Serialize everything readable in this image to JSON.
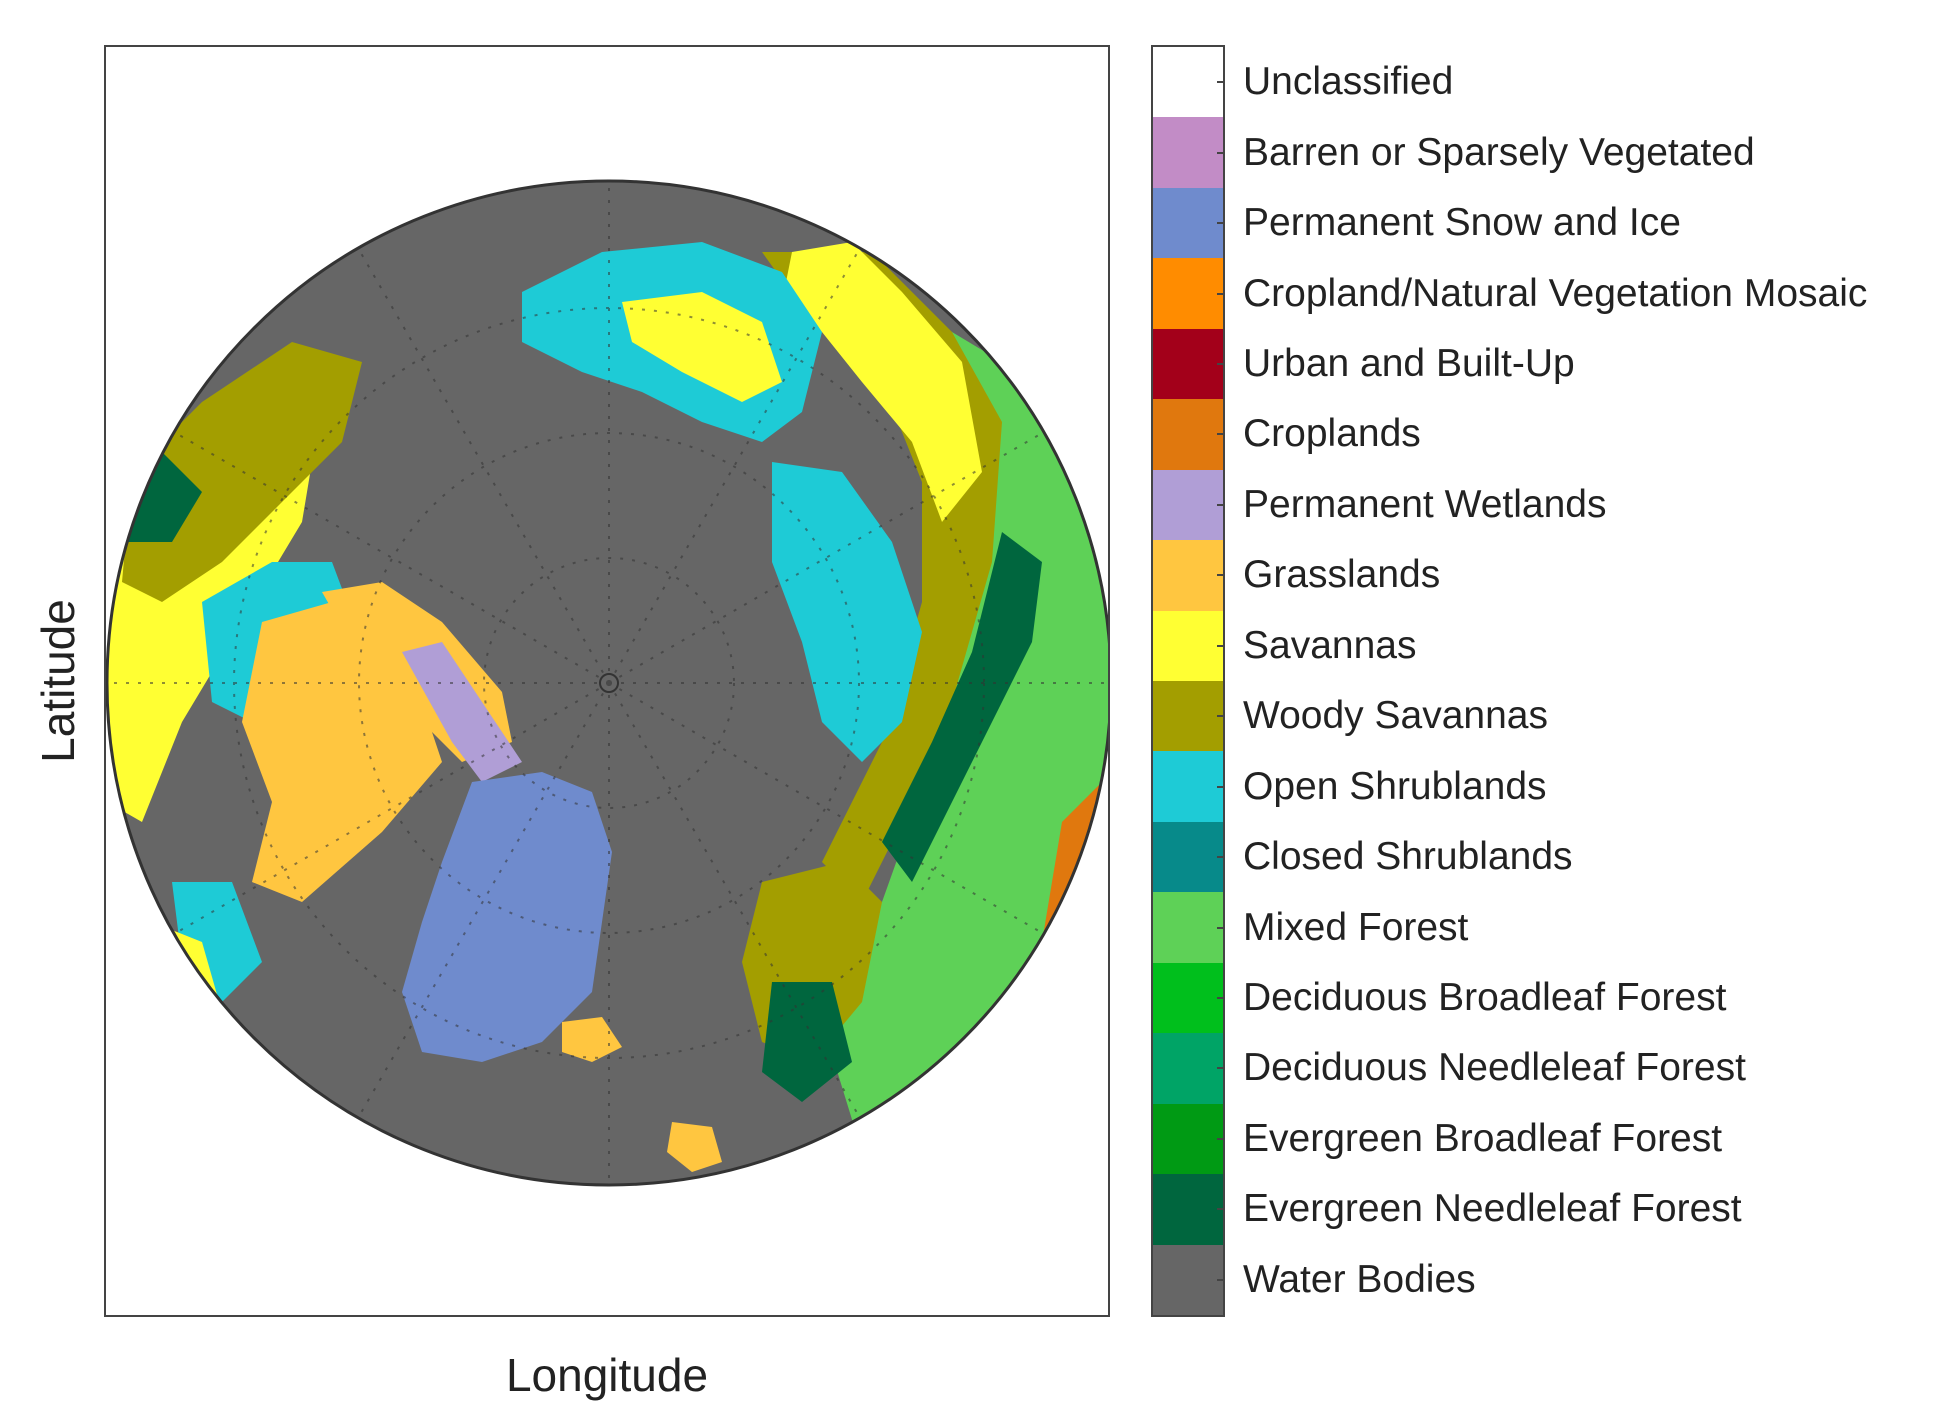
{
  "figure": {
    "xlabel": "Longitude",
    "ylabel": "Latitude"
  },
  "legend": {
    "classes": [
      {
        "label": "Unclassified",
        "color": "#ffffff"
      },
      {
        "label": "Barren or Sparsely Vegetated",
        "color": "#c28cc6"
      },
      {
        "label": "Permanent Snow and Ice",
        "color": "#6f8bcd"
      },
      {
        "label": "Cropland/Natural Vegetation Mosaic",
        "color": "#ff8c00"
      },
      {
        "label": "Urban and Built-Up",
        "color": "#a3001a"
      },
      {
        "label": "Croplands",
        "color": "#e0780e"
      },
      {
        "label": "Permanent Wetlands",
        "color": "#b09ed6"
      },
      {
        "label": "Grasslands",
        "color": "#ffc640"
      },
      {
        "label": "Savannas",
        "color": "#ffff33"
      },
      {
        "label": "Woody Savannas",
        "color": "#a39e00"
      },
      {
        "label": "Open Shrublands",
        "color": "#1ecbd6"
      },
      {
        "label": "Closed Shrublands",
        "color": "#078a8a"
      },
      {
        "label": "Mixed Forest",
        "color": "#5ed157"
      },
      {
        "label": "Deciduous Broadleaf Forest",
        "color": "#00bf1c"
      },
      {
        "label": "Deciduous Needleleaf Forest",
        "color": "#00a466"
      },
      {
        "label": "Evergreen Broadleaf Forest",
        "color": "#009a14"
      },
      {
        "label": "Evergreen Needleleaf Forest",
        "color": "#00663e"
      },
      {
        "label": "Water Bodies",
        "color": "#666666"
      }
    ]
  }
}
